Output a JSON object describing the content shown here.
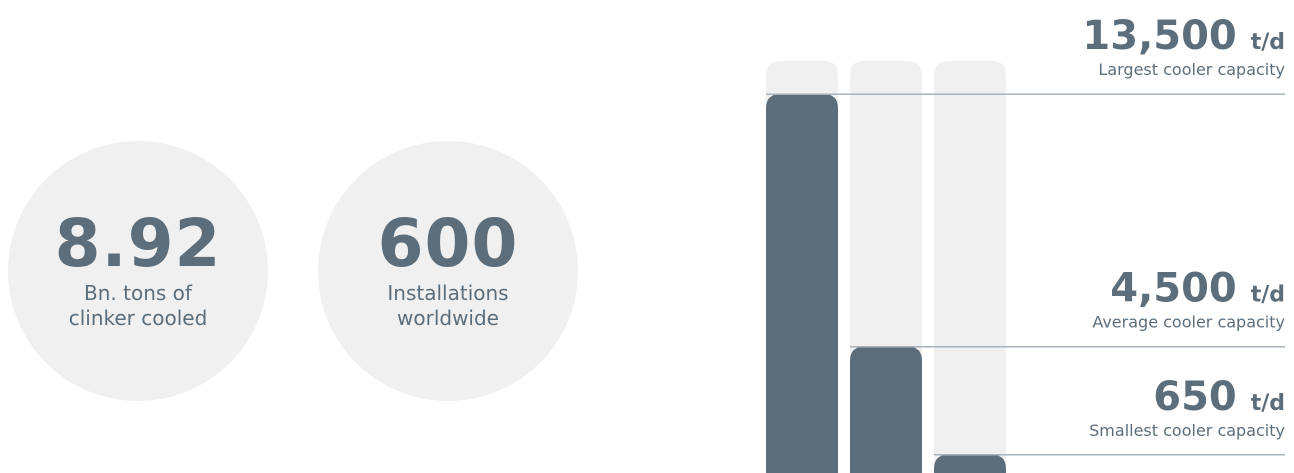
{
  "stats": [
    {
      "value": "8.92",
      "caption_line1": "Bn. tons of",
      "caption_line2": "clinker cooled"
    },
    {
      "value": "600",
      "caption_line1": "Installations",
      "caption_line2": "worldwide"
    }
  ],
  "colors": {
    "bar": "#5c6e7c",
    "track": "#eff0ef",
    "line": "#a9b3bb",
    "text": "#5c6e7c"
  },
  "chart_data": {
    "type": "bar",
    "unit": "t/d",
    "ylim": [
      0,
      14000
    ],
    "bars": [
      {
        "value_num": 13500,
        "value": "13,500",
        "label": "Largest cooler capacity"
      },
      {
        "value_num": 4500,
        "value": "4,500",
        "label": "Average cooler capacity"
      },
      {
        "value_num": 650,
        "value": "650",
        "label": "Smallest cooler capacity"
      }
    ]
  }
}
